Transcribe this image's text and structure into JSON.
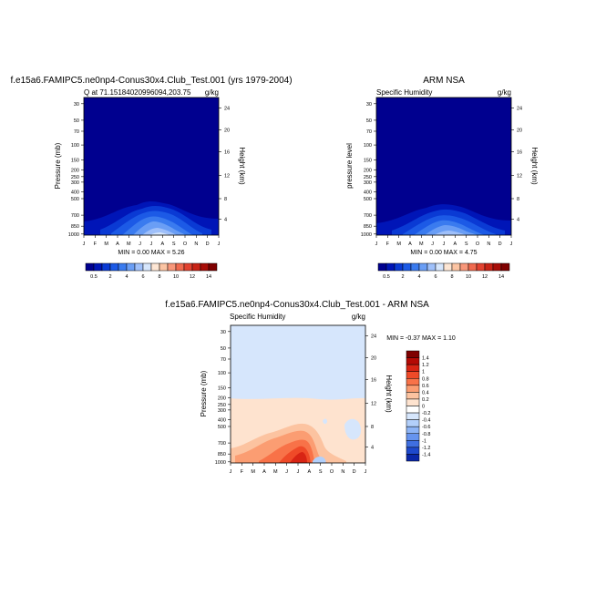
{
  "chart_data": [
    {
      "type": "heatmap",
      "title": "f.e15a6.FAMIPC5.ne0np4-Conus30x4.Club_Test.001 (yrs 1979-2004)",
      "left_string": "Q at 71.15184020996094,203.75",
      "right_string": "g/kg",
      "ylabel": "Pressure (mb)",
      "y2label": "Height (km)",
      "stats": "MIN =   0.00 MAX =   5.26",
      "yticks": [
        "30",
        "50",
        "70",
        "100",
        "150",
        "200",
        "250",
        "300",
        "400",
        "500",
        "700",
        "850",
        "1000"
      ],
      "y2ticks": [
        "24",
        "20",
        "16",
        "12",
        "8",
        "4"
      ],
      "xticks": [
        "J",
        "F",
        "M",
        "A",
        "M",
        "J",
        "J",
        "A",
        "S",
        "O",
        "N",
        "D",
        "J"
      ],
      "cbar_ticks": [
        "0.5",
        "2",
        "4",
        "6",
        "8",
        "10",
        "12",
        "14"
      ],
      "min": 0.0,
      "max": 5.26
    },
    {
      "type": "heatmap",
      "title": "ARM NSA",
      "left_string": "Specific Humidity",
      "right_string": "g/kg",
      "ylabel": "pressure level",
      "y2label": "Height (km)",
      "stats": "MIN =   0.00 MAX =   4.75",
      "yticks": [
        "30",
        "50",
        "70",
        "100",
        "150",
        "200",
        "250",
        "300",
        "400",
        "500",
        "700",
        "850",
        "1000"
      ],
      "y2ticks": [
        "24",
        "20",
        "16",
        "12",
        "8",
        "4"
      ],
      "xticks": [
        "J",
        "F",
        "M",
        "A",
        "M",
        "J",
        "J",
        "A",
        "S",
        "O",
        "N",
        "D",
        "J"
      ],
      "cbar_ticks": [
        "0.5",
        "2",
        "4",
        "6",
        "8",
        "10",
        "12",
        "14"
      ],
      "min": 0.0,
      "max": 4.75
    },
    {
      "type": "heatmap",
      "title": "f.e15a6.FAMIPC5.ne0np4-Conus30x4.Club_Test.001 - ARM NSA",
      "left_string": "Specific Humidity",
      "right_string": "g/kg",
      "ylabel": "Pressure (mb)",
      "y2label": "Height (km)",
      "stats": "MIN =  -0.37 MAX =   1.10",
      "yticks": [
        "30",
        "50",
        "70",
        "100",
        "150",
        "200",
        "250",
        "300",
        "400",
        "500",
        "700",
        "850",
        "1000"
      ],
      "y2ticks": [
        "24",
        "20",
        "16",
        "12",
        "8",
        "4"
      ],
      "xticks": [
        "J",
        "F",
        "M",
        "A",
        "M",
        "J",
        "J",
        "A",
        "S",
        "O",
        "N",
        "D",
        "J"
      ],
      "cbar_ticks": [
        "1.4",
        "1.2",
        "1",
        "0.8",
        "0.6",
        "0.4",
        "0.2",
        "0",
        "-0.2",
        "-0.4",
        "-0.6",
        "-0.8",
        "-1",
        "-1.2",
        "-1.4"
      ],
      "min": -0.37,
      "max": 1.1
    }
  ],
  "colors": {
    "abs_scale": [
      "#00008f",
      "#0015b7",
      "#0a3ad4",
      "#1c5ae6",
      "#3a7bef",
      "#6a9ef5",
      "#9fc0fa",
      "#d6e6fc",
      "#fde6d4",
      "#fbc4a3",
      "#f8977a",
      "#f06a4f",
      "#e24230",
      "#c82316",
      "#a80d08",
      "#7f0000"
    ],
    "diff_scale": [
      "#7f0000",
      "#b40a05",
      "#d82414",
      "#ef4a28",
      "#f87248",
      "#fb9d72",
      "#fcc3a0",
      "#fee3cf",
      "#ffffff",
      "#d6e6fc",
      "#b2cffa",
      "#8db4f6",
      "#6694ef",
      "#3f6fe0",
      "#1e49cc",
      "#0a27a8"
    ]
  }
}
